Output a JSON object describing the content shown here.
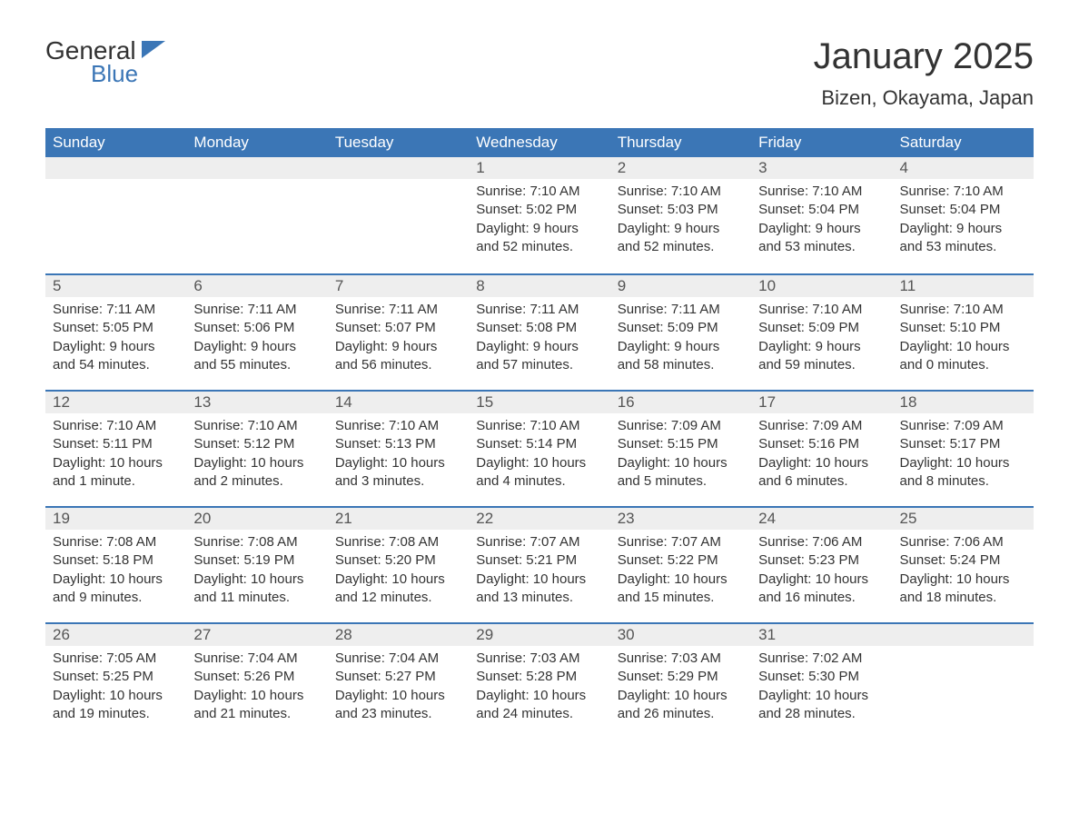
{
  "logo": {
    "text1": "General",
    "text2": "Blue",
    "accent_color": "#3b76b6"
  },
  "title": "January 2025",
  "location": "Bizen, Okayama, Japan",
  "weekdays": [
    "Sunday",
    "Monday",
    "Tuesday",
    "Wednesday",
    "Thursday",
    "Friday",
    "Saturday"
  ],
  "style": {
    "header_bg": "#3b76b6",
    "header_fg": "#ffffff",
    "daynum_bg": "#eeeeee",
    "row_border": "#3b76b6",
    "text_color": "#333333",
    "font_family": "Arial, Helvetica, sans-serif",
    "month_title_fontsize": 40,
    "location_fontsize": 22,
    "weekday_fontsize": 17,
    "body_fontsize": 15
  },
  "weeks": [
    [
      null,
      null,
      null,
      {
        "n": "1",
        "sunrise": "7:10 AM",
        "sunset": "5:02 PM",
        "daylight": "9 hours and 52 minutes."
      },
      {
        "n": "2",
        "sunrise": "7:10 AM",
        "sunset": "5:03 PM",
        "daylight": "9 hours and 52 minutes."
      },
      {
        "n": "3",
        "sunrise": "7:10 AM",
        "sunset": "5:04 PM",
        "daylight": "9 hours and 53 minutes."
      },
      {
        "n": "4",
        "sunrise": "7:10 AM",
        "sunset": "5:04 PM",
        "daylight": "9 hours and 53 minutes."
      }
    ],
    [
      {
        "n": "5",
        "sunrise": "7:11 AM",
        "sunset": "5:05 PM",
        "daylight": "9 hours and 54 minutes."
      },
      {
        "n": "6",
        "sunrise": "7:11 AM",
        "sunset": "5:06 PM",
        "daylight": "9 hours and 55 minutes."
      },
      {
        "n": "7",
        "sunrise": "7:11 AM",
        "sunset": "5:07 PM",
        "daylight": "9 hours and 56 minutes."
      },
      {
        "n": "8",
        "sunrise": "7:11 AM",
        "sunset": "5:08 PM",
        "daylight": "9 hours and 57 minutes."
      },
      {
        "n": "9",
        "sunrise": "7:11 AM",
        "sunset": "5:09 PM",
        "daylight": "9 hours and 58 minutes."
      },
      {
        "n": "10",
        "sunrise": "7:10 AM",
        "sunset": "5:09 PM",
        "daylight": "9 hours and 59 minutes."
      },
      {
        "n": "11",
        "sunrise": "7:10 AM",
        "sunset": "5:10 PM",
        "daylight": "10 hours and 0 minutes."
      }
    ],
    [
      {
        "n": "12",
        "sunrise": "7:10 AM",
        "sunset": "5:11 PM",
        "daylight": "10 hours and 1 minute."
      },
      {
        "n": "13",
        "sunrise": "7:10 AM",
        "sunset": "5:12 PM",
        "daylight": "10 hours and 2 minutes."
      },
      {
        "n": "14",
        "sunrise": "7:10 AM",
        "sunset": "5:13 PM",
        "daylight": "10 hours and 3 minutes."
      },
      {
        "n": "15",
        "sunrise": "7:10 AM",
        "sunset": "5:14 PM",
        "daylight": "10 hours and 4 minutes."
      },
      {
        "n": "16",
        "sunrise": "7:09 AM",
        "sunset": "5:15 PM",
        "daylight": "10 hours and 5 minutes."
      },
      {
        "n": "17",
        "sunrise": "7:09 AM",
        "sunset": "5:16 PM",
        "daylight": "10 hours and 6 minutes."
      },
      {
        "n": "18",
        "sunrise": "7:09 AM",
        "sunset": "5:17 PM",
        "daylight": "10 hours and 8 minutes."
      }
    ],
    [
      {
        "n": "19",
        "sunrise": "7:08 AM",
        "sunset": "5:18 PM",
        "daylight": "10 hours and 9 minutes."
      },
      {
        "n": "20",
        "sunrise": "7:08 AM",
        "sunset": "5:19 PM",
        "daylight": "10 hours and 11 minutes."
      },
      {
        "n": "21",
        "sunrise": "7:08 AM",
        "sunset": "5:20 PM",
        "daylight": "10 hours and 12 minutes."
      },
      {
        "n": "22",
        "sunrise": "7:07 AM",
        "sunset": "5:21 PM",
        "daylight": "10 hours and 13 minutes."
      },
      {
        "n": "23",
        "sunrise": "7:07 AM",
        "sunset": "5:22 PM",
        "daylight": "10 hours and 15 minutes."
      },
      {
        "n": "24",
        "sunrise": "7:06 AM",
        "sunset": "5:23 PM",
        "daylight": "10 hours and 16 minutes."
      },
      {
        "n": "25",
        "sunrise": "7:06 AM",
        "sunset": "5:24 PM",
        "daylight": "10 hours and 18 minutes."
      }
    ],
    [
      {
        "n": "26",
        "sunrise": "7:05 AM",
        "sunset": "5:25 PM",
        "daylight": "10 hours and 19 minutes."
      },
      {
        "n": "27",
        "sunrise": "7:04 AM",
        "sunset": "5:26 PM",
        "daylight": "10 hours and 21 minutes."
      },
      {
        "n": "28",
        "sunrise": "7:04 AM",
        "sunset": "5:27 PM",
        "daylight": "10 hours and 23 minutes."
      },
      {
        "n": "29",
        "sunrise": "7:03 AM",
        "sunset": "5:28 PM",
        "daylight": "10 hours and 24 minutes."
      },
      {
        "n": "30",
        "sunrise": "7:03 AM",
        "sunset": "5:29 PM",
        "daylight": "10 hours and 26 minutes."
      },
      {
        "n": "31",
        "sunrise": "7:02 AM",
        "sunset": "5:30 PM",
        "daylight": "10 hours and 28 minutes."
      },
      null
    ]
  ],
  "labels": {
    "sunrise": "Sunrise: ",
    "sunset": "Sunset: ",
    "daylight": "Daylight: "
  }
}
